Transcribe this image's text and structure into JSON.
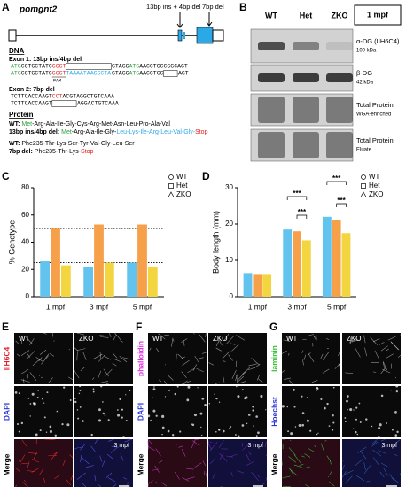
{
  "panel_labels": [
    "A",
    "B",
    "C",
    "D",
    "E",
    "F",
    "G"
  ],
  "panel_a": {
    "gene": "pomgnt2",
    "mutation_1": "13bp ins + 4bp del",
    "mutation_2": "7bp del",
    "dna_heading": "DNA",
    "exon_1": "Exon 1: 13bp ins/4bp del",
    "exon_2": "Exon 2: 7bp del",
    "pam": "PAM",
    "exon_1_wt": [
      "ATG",
      "CGTGCTATC",
      "GGGT",
      "GTAGG",
      "ATG",
      "AACCTGCCGGCAGT"
    ],
    "exon_1_mut": [
      "ATG",
      "CGTGCTATC",
      "GGGT",
      "TAAAATAAGGCTA",
      "GTAGG",
      "ATG",
      "AACCTGC",
      "AGT"
    ],
    "exon_2_wt": [
      "TCTTCACCAAGT",
      "CCT",
      "ACGTAGGCTGTCAAA"
    ],
    "exon_2_mut": [
      "TCTTCACCAAGT",
      "AGGACTGTCAAA"
    ],
    "protein_heading": "Protein",
    "protein_1_wt": [
      "WT: ",
      "Met",
      "-Arg-Ala-Ile-Gly-Cys-Arg-Met-Asn-Leu-Pro-Ala-Val"
    ],
    "protein_1_mut": [
      "13bp ins/4bp del: ",
      "Met",
      "-Arg-Ala-Ile-Gly-",
      "Leu-Lys-Ile-Arg-Leu-Val-Gly-",
      "Stop"
    ],
    "protein_2_wt": [
      "WT: ",
      "Phe235-Thr-Lys-Ser-Tyr-Val-Gly-Leu-Ser"
    ],
    "protein_2_mut": [
      "7bp del: ",
      "Phe235-Thr-Lys-",
      "Stop"
    ]
  },
  "panel_b": {
    "lanes": [
      "WT",
      "Het",
      "ZKO"
    ],
    "timepoint": "1 mpf",
    "rows": [
      [
        "α-DG (IIH6C4)",
        "100 kDa"
      ],
      [
        "β-DG",
        "42 kDa"
      ],
      [
        "Total Protein",
        "WGA-enriched"
      ],
      [
        "Total Protein",
        "Eluate"
      ]
    ]
  },
  "chart_data": [
    {
      "type": "bar",
      "y_label": "% Genotype",
      "categories": [
        "1 mpf",
        "3 mpf",
        "5 mpf"
      ],
      "series": [
        {
          "name": "WT",
          "color": "#62c3ef",
          "marker": "circle",
          "values": [
            26,
            22,
            25
          ]
        },
        {
          "name": "Het",
          "color": "#f6a04a",
          "marker": "square",
          "values": [
            50,
            53,
            53
          ]
        },
        {
          "name": "ZKO",
          "color": "#f3d53f",
          "marker": "triangle",
          "values": [
            23,
            25,
            22
          ]
        }
      ],
      "ylim": [
        0,
        80
      ],
      "yticks": [
        0,
        20,
        40,
        60,
        80
      ],
      "reference_lines": [
        25,
        50
      ]
    },
    {
      "type": "bar",
      "y_label": "Body length (mm)",
      "categories": [
        "1 mpf",
        "3 mpf",
        "5 mpf"
      ],
      "series": [
        {
          "name": "WT",
          "color": "#62c3ef",
          "marker": "circle",
          "values": [
            6.5,
            18.5,
            22
          ]
        },
        {
          "name": "Het",
          "color": "#f6a04a",
          "marker": "square",
          "values": [
            6,
            18,
            21
          ]
        },
        {
          "name": "ZKO",
          "color": "#f3d53f",
          "marker": "triangle",
          "values": [
            6,
            15.5,
            17.5
          ]
        }
      ],
      "ylim": [
        0,
        30
      ],
      "yticks": [
        0,
        10,
        20,
        30
      ],
      "annotations": [
        "***",
        "***",
        "***",
        "***"
      ]
    }
  ],
  "panel_e": {
    "columns": [
      "WT",
      "ZKO"
    ],
    "rows": [
      "IIH6C4",
      "DAPI",
      "Merge"
    ],
    "row_colors": [
      "#e0202a",
      "#2a35d8",
      "#000000"
    ],
    "timepoint": "3 mpf"
  },
  "panel_f": {
    "columns": [
      "WT",
      "ZKO"
    ],
    "rows": [
      "phalloidin",
      "DAPI",
      "Merge"
    ],
    "row_colors": [
      "#e030e0",
      "#2a35d8",
      "#000000"
    ],
    "timepoint": "3 mpf"
  },
  "panel_g": {
    "columns": [
      "WT",
      "ZKO"
    ],
    "rows": [
      "laminin",
      "Hoechst",
      "Merge"
    ],
    "row_colors": [
      "#30c030",
      "#2a35d8",
      "#000000"
    ],
    "timepoint": "3 mpf"
  }
}
